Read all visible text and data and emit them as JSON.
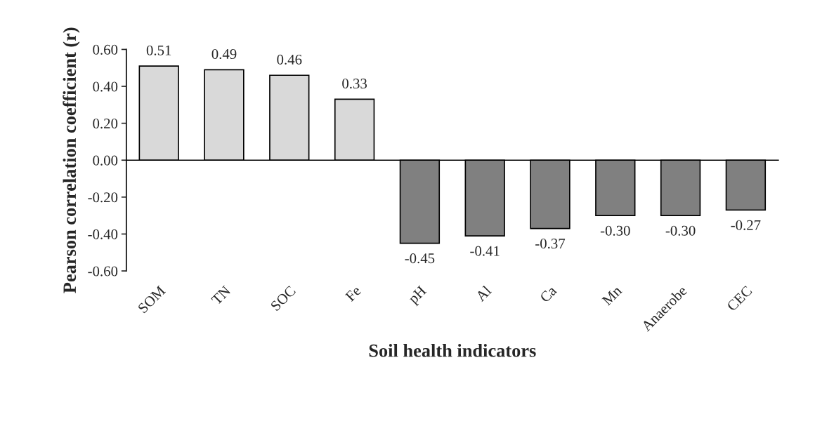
{
  "chart_data": {
    "type": "bar",
    "xlabel": "Soil health indicators",
    "ylabel": "Pearson correlation coefficient (r)",
    "categories": [
      "SOM",
      "TN",
      "SOC",
      "Fe",
      "pH",
      "Al",
      "Ca",
      "Mn",
      "Anaerobe",
      "CEC"
    ],
    "values": [
      0.51,
      0.49,
      0.46,
      0.33,
      -0.45,
      -0.41,
      -0.37,
      -0.3,
      -0.3,
      -0.27
    ],
    "value_labels": [
      "0.51",
      "0.49",
      "0.46",
      "0.33",
      "-0.45",
      "-0.41",
      "-0.37",
      "-0.30",
      "-0.30",
      "-0.27"
    ],
    "colors": [
      "#d9d9d9",
      "#d9d9d9",
      "#d9d9d9",
      "#d9d9d9",
      "#808080",
      "#808080",
      "#808080",
      "#808080",
      "#808080",
      "#808080"
    ],
    "ylim": [
      -0.6,
      0.6
    ],
    "yticks": [
      {
        "value": -0.6,
        "label": "-0.60"
      },
      {
        "value": -0.4,
        "label": "-0.40"
      },
      {
        "value": -0.2,
        "label": "-0.20"
      },
      {
        "value": 0,
        "label": "0.00"
      },
      {
        "value": 0.2,
        "label": "0.20"
      },
      {
        "value": 0.4,
        "label": "0.40"
      },
      {
        "value": 0.6,
        "label": "0.60"
      }
    ],
    "legend": false
  }
}
